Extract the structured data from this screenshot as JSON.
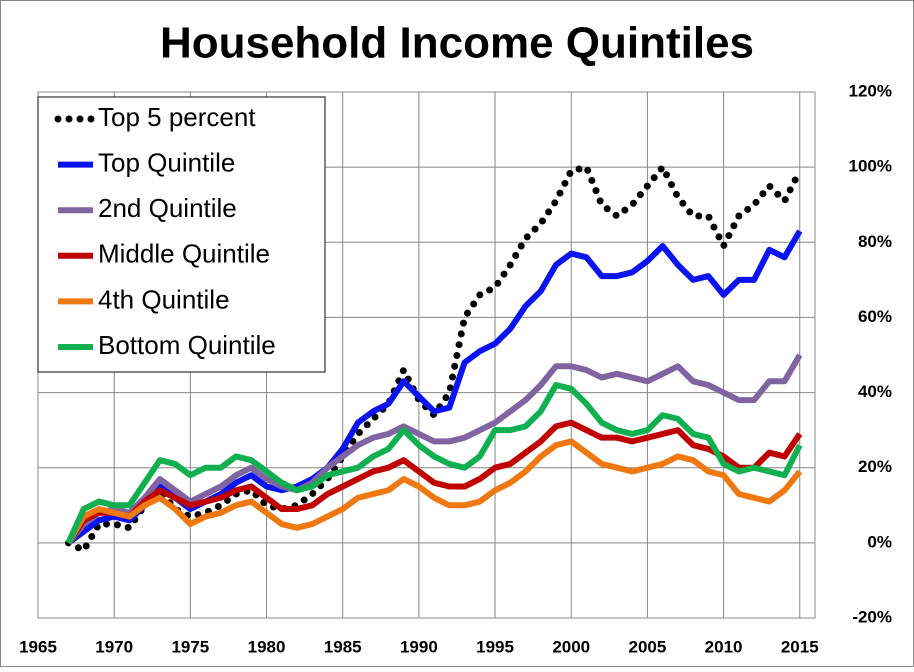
{
  "chart_data": {
    "type": "line",
    "title": "Household Income Quintiles",
    "x": [
      1967,
      1968,
      1969,
      1970,
      1971,
      1972,
      1973,
      1974,
      1975,
      1976,
      1977,
      1978,
      1979,
      1980,
      1981,
      1982,
      1983,
      1984,
      1985,
      1986,
      1987,
      1988,
      1989,
      1990,
      1991,
      1992,
      1993,
      1994,
      1995,
      1996,
      1997,
      1998,
      1999,
      2000,
      2001,
      2002,
      2003,
      2004,
      2005,
      2006,
      2007,
      2008,
      2009,
      2010,
      2011,
      2012,
      2013,
      2014,
      2015
    ],
    "series": [
      {
        "name": "Top 5 percent",
        "color": "#000000",
        "style": "dotted",
        "values": [
          0,
          -2,
          5,
          5,
          4,
          10,
          14,
          9,
          7,
          8,
          10,
          13,
          14,
          10,
          9,
          10,
          13,
          17,
          23,
          29,
          33,
          37,
          46,
          38,
          34,
          40,
          60,
          66,
          68,
          74,
          81,
          85,
          91,
          99,
          100,
          90,
          87,
          90,
          95,
          100,
          92,
          87,
          87,
          79,
          87,
          90,
          95,
          91,
          99
        ]
      },
      {
        "name": "Top Quintile",
        "color": "#0a14f0",
        "style": "solid",
        "values": [
          0,
          3,
          6,
          7,
          6,
          10,
          15,
          12,
          9,
          11,
          13,
          16,
          18,
          15,
          14,
          15,
          17,
          20,
          25,
          32,
          35,
          37,
          43,
          39,
          35,
          36,
          48,
          51,
          53,
          57,
          63,
          67,
          74,
          77,
          76,
          71,
          71,
          72,
          75,
          79,
          74,
          70,
          71,
          66,
          70,
          70,
          78,
          76,
          83
        ]
      },
      {
        "name": "2nd Quintile",
        "color": "#8064a2",
        "style": "solid",
        "values": [
          0,
          5,
          8,
          9,
          8,
          12,
          17,
          14,
          11,
          13,
          15,
          18,
          20,
          17,
          15,
          14,
          16,
          20,
          23,
          26,
          28,
          29,
          31,
          29,
          27,
          27,
          28,
          30,
          32,
          35,
          38,
          42,
          47,
          47,
          46,
          44,
          45,
          44,
          43,
          45,
          47,
          43,
          42,
          40,
          38,
          38,
          43,
          43,
          50
        ]
      },
      {
        "name": "Middle Quintile",
        "color": "#c00000",
        "style": "solid",
        "values": [
          0,
          6,
          8,
          8,
          7,
          11,
          14,
          12,
          10,
          11,
          12,
          14,
          15,
          12,
          9,
          9,
          10,
          13,
          15,
          17,
          19,
          20,
          22,
          19,
          16,
          15,
          15,
          17,
          20,
          21,
          24,
          27,
          31,
          32,
          30,
          28,
          28,
          27,
          28,
          29,
          30,
          26,
          25,
          23,
          20,
          20,
          24,
          23,
          29
        ]
      },
      {
        "name": "4th Quintile",
        "color": "#f07810",
        "style": "solid",
        "values": [
          0,
          7,
          9,
          8,
          7,
          10,
          12,
          9,
          5,
          7,
          8,
          10,
          11,
          8,
          5,
          4,
          5,
          7,
          9,
          12,
          13,
          14,
          17,
          15,
          12,
          10,
          10,
          11,
          14,
          16,
          19,
          23,
          26,
          27,
          24,
          21,
          20,
          19,
          20,
          21,
          23,
          22,
          19,
          18,
          13,
          12,
          11,
          14,
          19
        ]
      },
      {
        "name": "Bottom Quintile",
        "color": "#10b050",
        "style": "solid",
        "values": [
          0,
          9,
          11,
          10,
          10,
          16,
          22,
          21,
          18,
          20,
          20,
          23,
          22,
          19,
          16,
          14,
          15,
          18,
          19,
          20,
          23,
          25,
          30,
          26,
          23,
          21,
          20,
          23,
          30,
          30,
          31,
          35,
          42,
          41,
          37,
          32,
          30,
          29,
          30,
          34,
          33,
          29,
          28,
          21,
          19,
          20,
          19,
          18,
          26
        ]
      }
    ],
    "xlim": [
      1965,
      2016
    ],
    "xticks": [
      1965,
      1970,
      1975,
      1980,
      1985,
      1990,
      1995,
      2000,
      2005,
      2010,
      2015
    ],
    "ylim": [
      -20,
      120
    ],
    "yticks": [
      {
        "value": -20,
        "label": "-20%"
      },
      {
        "value": 0,
        "label": "0%"
      },
      {
        "value": 20,
        "label": "20%"
      },
      {
        "value": 40,
        "label": "40%"
      },
      {
        "value": 60,
        "label": "60%"
      },
      {
        "value": 80,
        "label": "80%"
      },
      {
        "value": 100,
        "label": "100%"
      },
      {
        "value": 120,
        "label": "120%"
      }
    ],
    "grid": true,
    "legend": "upper left"
  }
}
